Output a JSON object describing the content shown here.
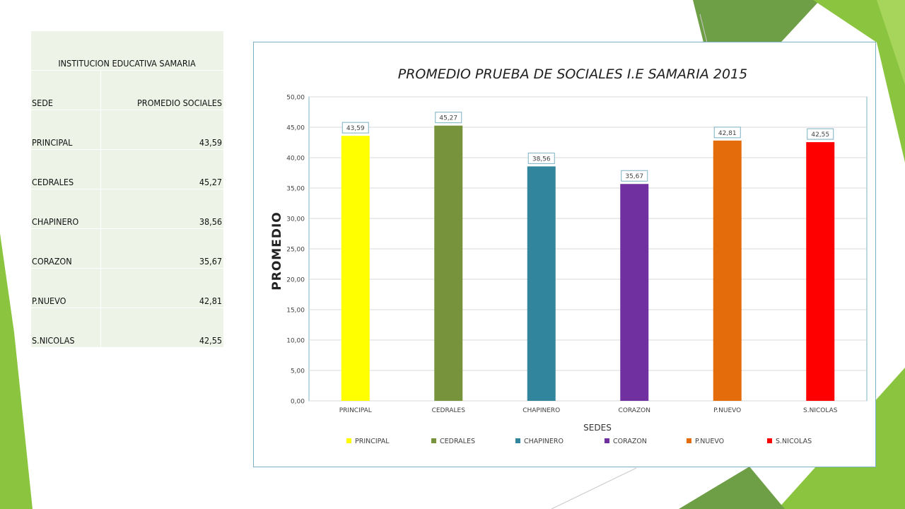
{
  "table": {
    "title": "INSTITUCION EDUCATIVA SAMARIA",
    "headers": [
      "SEDE",
      "PROMEDIO SOCIALES"
    ],
    "rows": [
      {
        "sede": "PRINCIPAL",
        "valor": "43,59"
      },
      {
        "sede": "CEDRALES",
        "valor": "45,27"
      },
      {
        "sede": "CHAPINERO",
        "valor": "38,56"
      },
      {
        "sede": "CORAZON",
        "valor": "35,67"
      },
      {
        "sede": "P.NUEVO",
        "valor": "42,81"
      },
      {
        "sede": "S.NICOLAS",
        "valor": "42,55"
      }
    ]
  },
  "chart_data": {
    "type": "bar",
    "title": "PROMEDIO PRUEBA DE SOCIALES I.E SAMARIA 2015",
    "xlabel": "SEDES",
    "ylabel": "PROMEDIO",
    "categories": [
      "PRINCIPAL",
      "CEDRALES",
      "CHAPINERO",
      "CORAZON",
      "P.NUEVO",
      "S.NICOLAS"
    ],
    "values": [
      43.59,
      45.27,
      38.56,
      35.67,
      42.81,
      42.55
    ],
    "data_labels": [
      "43,59",
      "45,27",
      "38,56",
      "35,67",
      "42,81",
      "42,55"
    ],
    "colors": [
      "#ffff00",
      "#77933c",
      "#31859c",
      "#7030a0",
      "#e46c0a",
      "#ff0000"
    ],
    "ylim": [
      0,
      50
    ],
    "yticks": [
      0,
      5,
      10,
      15,
      20,
      25,
      30,
      35,
      40,
      45,
      50
    ],
    "ytick_labels": [
      "0,00",
      "5,00",
      "10,00",
      "15,00",
      "20,00",
      "25,00",
      "30,00",
      "35,00",
      "40,00",
      "45,00",
      "50,00"
    ],
    "grid": true,
    "legend": "bottom"
  },
  "theme": {
    "accent_green": "#8bc53f",
    "dark_green": "#6a9a3a"
  }
}
